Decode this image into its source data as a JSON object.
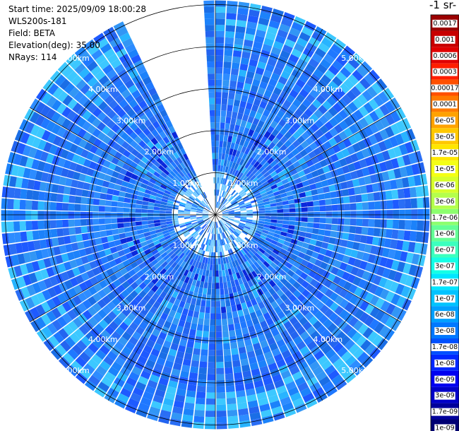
{
  "info": {
    "start_time": "Start time: 2025/09/09 18:00:28",
    "instrument": "WLS200s-181",
    "field": "Field: BETA",
    "elevation": "Elevation(deg): 35.00",
    "nrays": "NRays: 114"
  },
  "colorbar": {
    "title_fragment": "-1 sr-",
    "labels": [
      "0.0017",
      "0.001",
      "0.0006",
      "0.0003",
      "0.00017",
      "0.0001",
      "6e-05",
      "3e-05",
      "1.7e-05",
      "1e-05",
      "6e-06",
      "3e-06",
      "1.7e-06",
      "1e-06",
      "6e-07",
      "3e-07",
      "1.7e-07",
      "1e-07",
      "6e-08",
      "3e-08",
      "1.7e-08",
      "1e-08",
      "6e-09",
      "3e-09",
      "1.7e-09",
      "1e-09"
    ],
    "colors": [
      "#9b0000",
      "#c80000",
      "#e00000",
      "#ff1e00",
      "#ff5000",
      "#ff7a00",
      "#ffa200",
      "#ffc800",
      "#ffe600",
      "#f4ff14",
      "#d7ff2d",
      "#b4ff4c",
      "#8cff6e",
      "#64ff96",
      "#3cffbe",
      "#14ffe6",
      "#00e6ff",
      "#00c3ff",
      "#00a0ff",
      "#0078ff",
      "#0050ff",
      "#0028ff",
      "#0000f0",
      "#0000c8",
      "#00009b",
      "#000073"
    ]
  },
  "chart_data": {
    "type": "heatmap",
    "projection": "polar (PPI scan)",
    "field": "BETA",
    "elevation_deg": 35.0,
    "n_rays": 114,
    "range_rings_km": [
      1,
      2,
      3,
      4,
      5
    ],
    "range_ring_labels": [
      "1.00km",
      "2.00km",
      "3.00km",
      "4.00km",
      "5.00km"
    ],
    "max_range_km": 5.1,
    "missing_sector_azimuth_deg": [
      335,
      358
    ],
    "dominant_value_range": "3e-08 to 1.7e-07",
    "grid": true
  }
}
